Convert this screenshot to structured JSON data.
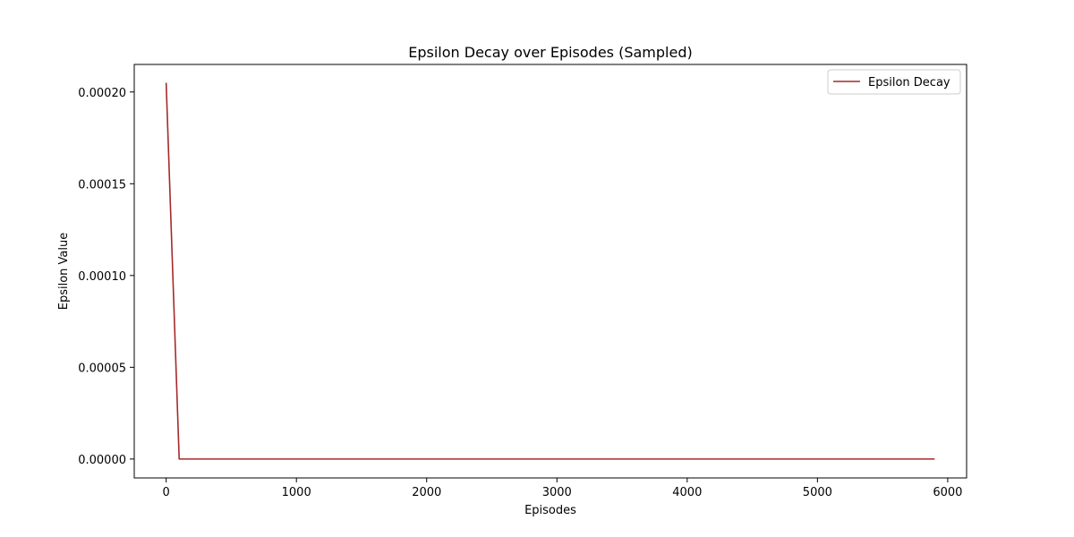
{
  "chart_data": {
    "type": "line",
    "title": "Epsilon Decay over Episodes (Sampled)",
    "xlabel": "Episodes",
    "ylabel": "Epsilon Value",
    "xlim": [
      -245,
      6145
    ],
    "ylim": [
      -1.03e-05,
      0.000215
    ],
    "x_ticks": [
      0,
      1000,
      2000,
      3000,
      4000,
      5000,
      6000
    ],
    "x_tick_labels": [
      "0",
      "1000",
      "2000",
      "3000",
      "4000",
      "5000",
      "6000"
    ],
    "y_ticks": [
      0.0,
      5e-05,
      0.0001,
      0.00015,
      0.0002
    ],
    "y_tick_labels": [
      "0.00000",
      "0.00005",
      "0.00010",
      "0.00015",
      "0.00020"
    ],
    "grid": false,
    "legend_position": "top-right",
    "series": [
      {
        "name": "Epsilon Decay",
        "color": "#a52a2a",
        "x": [
          0,
          100,
          200,
          500,
          1000,
          2000,
          3000,
          4000,
          5000,
          5900
        ],
        "y": [
          0.000205,
          0.0,
          0.0,
          0.0,
          0.0,
          0.0,
          0.0,
          0.0,
          0.0,
          0.0
        ]
      }
    ]
  }
}
